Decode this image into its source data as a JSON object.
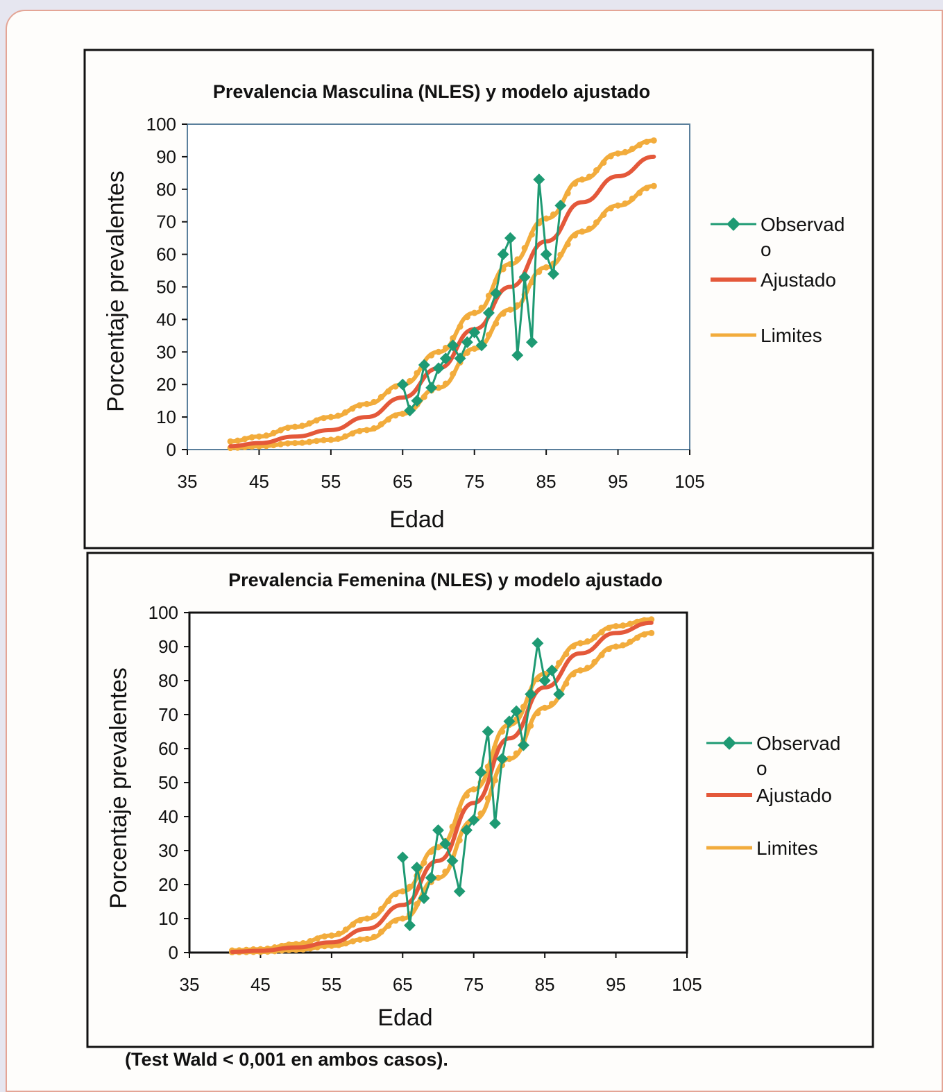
{
  "colors": {
    "observed": "#1e9a73",
    "fitted": "#e4583a",
    "limits": "#f2ac3c",
    "background": "#fefdfb",
    "frame": "#e4a596"
  },
  "legend": {
    "observed_line1": "Observad",
    "observed_line2": "o",
    "fitted": "Ajustado",
    "limits": "Limites"
  },
  "footnote": "(Test Wald < 0,001 en ambos casos).",
  "chart_data": [
    {
      "type": "line",
      "title": "Prevalencia Masculina (NLES) y modelo ajustado",
      "xlabel": "Edad",
      "ylabel": "Porcentaje prevalentes",
      "xlim": [
        35,
        105
      ],
      "ylim": [
        0,
        100
      ],
      "xticks": [
        35,
        45,
        55,
        65,
        75,
        85,
        95,
        105
      ],
      "yticks": [
        0,
        10,
        20,
        30,
        40,
        50,
        60,
        70,
        80,
        90,
        100
      ],
      "legend_position": "right",
      "fitted_x_range": [
        41,
        100
      ],
      "series": [
        {
          "name": "Observado",
          "x": [
            65,
            66,
            67,
            68,
            69,
            70,
            71,
            72,
            73,
            74,
            75,
            76,
            77,
            78,
            79,
            80,
            81,
            82,
            83,
            84,
            85,
            86,
            87
          ],
          "y": [
            20,
            12,
            15,
            26,
            19,
            25,
            28,
            32,
            28,
            33,
            36,
            32,
            42,
            48,
            60,
            65,
            29,
            53,
            33,
            83,
            60,
            54,
            75
          ]
        },
        {
          "name": "Ajustado",
          "x": [
            41,
            45,
            50,
            55,
            60,
            65,
            70,
            75,
            80,
            85,
            90,
            95,
            100
          ],
          "y": [
            1,
            2,
            4,
            6,
            10,
            16,
            25,
            37,
            50,
            64,
            76,
            84,
            90
          ]
        },
        {
          "name": "Limites",
          "x": [
            41,
            45,
            50,
            55,
            60,
            65,
            70,
            75,
            80,
            85,
            90,
            95,
            100
          ],
          "y": [
            2.5,
            4,
            7,
            10,
            14,
            20,
            30,
            42,
            57,
            71,
            83,
            91,
            95
          ]
        },
        {
          "name": "Limites",
          "x": [
            41,
            45,
            50,
            55,
            60,
            65,
            70,
            75,
            80,
            85,
            90,
            95,
            100
          ],
          "y": [
            0.5,
            1,
            2,
            3,
            6,
            11,
            19,
            31,
            43,
            56,
            67,
            75,
            81
          ]
        }
      ]
    },
    {
      "type": "line",
      "title": "Prevalencia Femenina (NLES) y modelo ajustado",
      "xlabel": "Edad",
      "ylabel": "Porcentaje prevalentes",
      "xlim": [
        35,
        105
      ],
      "ylim": [
        0,
        100
      ],
      "xticks": [
        35,
        45,
        55,
        65,
        75,
        85,
        95,
        105
      ],
      "yticks": [
        0,
        10,
        20,
        30,
        40,
        50,
        60,
        70,
        80,
        90,
        100
      ],
      "legend_position": "right",
      "fitted_x_range": [
        41,
        100
      ],
      "series": [
        {
          "name": "Observado",
          "x": [
            65,
            66,
            67,
            68,
            69,
            70,
            71,
            72,
            73,
            74,
            75,
            76,
            77,
            78,
            79,
            80,
            81,
            82,
            83,
            84,
            85,
            86,
            87
          ],
          "y": [
            28,
            8,
            25,
            16,
            22,
            36,
            32,
            27,
            18,
            36,
            39,
            53,
            65,
            38,
            57,
            68,
            71,
            61,
            76,
            91,
            80,
            83,
            76
          ]
        },
        {
          "name": "Ajustado",
          "x": [
            41,
            45,
            50,
            55,
            60,
            65,
            70,
            75,
            80,
            85,
            90,
            95,
            100
          ],
          "y": [
            0.2,
            0.5,
            1.5,
            3,
            7,
            14,
            27,
            44,
            63,
            78,
            88,
            94,
            97
          ]
        },
        {
          "name": "Limites",
          "x": [
            41,
            45,
            50,
            55,
            60,
            65,
            70,
            75,
            80,
            85,
            90,
            95,
            100
          ],
          "y": [
            0.6,
            1,
            2.5,
            5,
            10,
            18,
            31,
            48,
            67,
            82,
            91,
            96,
            98
          ]
        },
        {
          "name": "Limites",
          "x": [
            41,
            45,
            50,
            55,
            60,
            65,
            70,
            75,
            80,
            85,
            90,
            95,
            100
          ],
          "y": [
            0.1,
            0.2,
            0.8,
            2,
            4,
            10,
            22,
            39,
            57,
            72,
            83,
            90,
            94
          ]
        }
      ]
    }
  ]
}
